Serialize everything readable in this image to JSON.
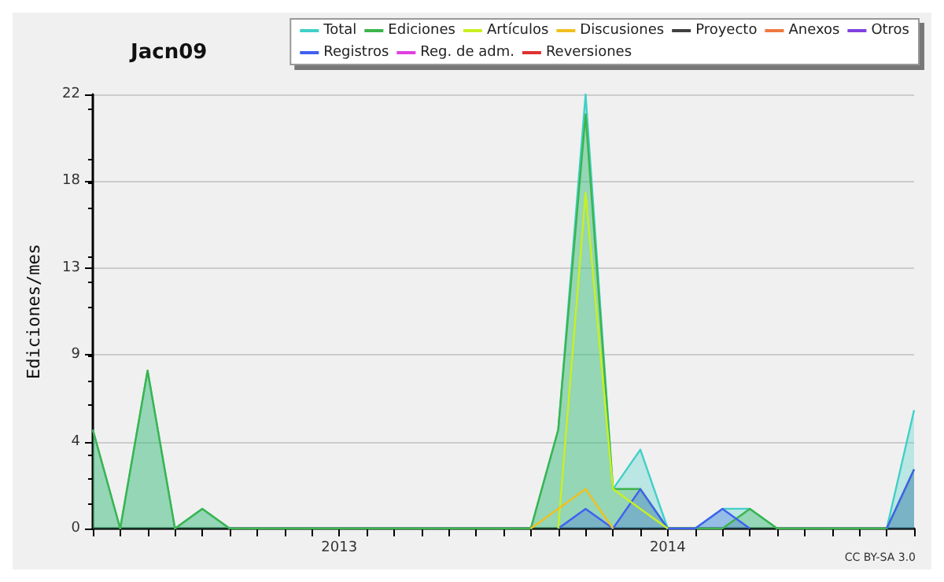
{
  "chart_data": {
    "type": "area",
    "title": "Jacn09",
    "ylabel": "Ediciones/mes",
    "categories": [
      null,
      null,
      null,
      null,
      null,
      null,
      null,
      null,
      null,
      "2013",
      null,
      null,
      null,
      null,
      null,
      null,
      null,
      null,
      null,
      null,
      null,
      "2014",
      null,
      null,
      null,
      null,
      null,
      null,
      null,
      null,
      null
    ],
    "series": [
      {
        "name": "Total",
        "color": "#40d0c8",
        "values": [
          5,
          0,
          8,
          0,
          1,
          0,
          0,
          0,
          0,
          0,
          0,
          0,
          0,
          0,
          0,
          0,
          0,
          5,
          22,
          2,
          4,
          0,
          0,
          1,
          1,
          0,
          0,
          0,
          0,
          0,
          6
        ]
      },
      {
        "name": "Ediciones",
        "color": "#3cb44b",
        "values": [
          5,
          0,
          8,
          0,
          1,
          0,
          0,
          0,
          0,
          0,
          0,
          0,
          0,
          0,
          0,
          0,
          0,
          5,
          21,
          2,
          2,
          0,
          0,
          0,
          1,
          0,
          0,
          0,
          0,
          0,
          3
        ]
      },
      {
        "name": "Artículos",
        "type": "line",
        "color": "#c8f020",
        "values": [
          null,
          null,
          null,
          null,
          null,
          null,
          null,
          null,
          null,
          null,
          null,
          null,
          null,
          null,
          null,
          null,
          null,
          0,
          17,
          2,
          1,
          0,
          null,
          null,
          null,
          null,
          null,
          null,
          null,
          null,
          null
        ]
      },
      {
        "name": "Discusiones",
        "type": "line",
        "color": "#f0c020",
        "values": [
          null,
          null,
          null,
          null,
          null,
          null,
          null,
          null,
          null,
          null,
          null,
          null,
          null,
          null,
          null,
          null,
          0,
          1,
          2,
          0,
          null,
          null,
          null,
          null,
          null,
          null,
          null,
          null,
          null,
          null,
          null
        ]
      },
      {
        "name": "Proyecto",
        "type": "line",
        "color": "#404040",
        "values": [
          null,
          null,
          null,
          null,
          null,
          null,
          null,
          null,
          null,
          null,
          null,
          null,
          null,
          null,
          null,
          null,
          null,
          null,
          null,
          null,
          null,
          null,
          null,
          null,
          null,
          null,
          null,
          null,
          null,
          null,
          null
        ]
      },
      {
        "name": "Anexos",
        "type": "line",
        "color": "#f07840",
        "values": [
          null,
          null,
          null,
          null,
          null,
          null,
          null,
          null,
          null,
          null,
          null,
          null,
          null,
          null,
          null,
          null,
          null,
          null,
          null,
          null,
          null,
          null,
          null,
          null,
          null,
          null,
          null,
          null,
          null,
          null,
          null
        ]
      },
      {
        "name": "Otros",
        "type": "line",
        "color": "#8040e0",
        "values": [
          null,
          null,
          null,
          null,
          null,
          null,
          null,
          null,
          null,
          null,
          null,
          null,
          null,
          null,
          null,
          null,
          null,
          null,
          null,
          null,
          null,
          null,
          null,
          null,
          null,
          null,
          null,
          null,
          null,
          null,
          null
        ]
      },
      {
        "name": "Registros",
        "color": "#4060f0",
        "values": [
          null,
          null,
          null,
          null,
          null,
          null,
          null,
          null,
          null,
          null,
          null,
          null,
          null,
          null,
          null,
          null,
          null,
          0,
          1,
          0,
          2,
          0,
          0,
          1,
          0,
          null,
          null,
          null,
          null,
          0,
          3
        ]
      },
      {
        "name": "Reg. de adm.",
        "type": "line",
        "color": "#e040e0",
        "values": [
          null,
          null,
          null,
          null,
          null,
          null,
          null,
          null,
          null,
          null,
          null,
          null,
          null,
          null,
          null,
          null,
          null,
          null,
          null,
          null,
          null,
          null,
          null,
          null,
          null,
          null,
          null,
          null,
          null,
          null,
          null
        ]
      },
      {
        "name": "Reversiones",
        "type": "line",
        "color": "#e03030",
        "values": [
          null,
          null,
          null,
          null,
          null,
          null,
          null,
          null,
          null,
          null,
          null,
          null,
          null,
          null,
          null,
          null,
          null,
          null,
          null,
          null,
          null,
          null,
          null,
          null,
          null,
          null,
          null,
          null,
          null,
          null,
          null
        ]
      }
    ],
    "ylim": [
      0,
      22
    ],
    "yticks": [
      0,
      {
        "value": 4.4,
        "label": "4"
      },
      {
        "value": 8.8,
        "label": "9"
      },
      {
        "value": 13.2,
        "label": "13"
      },
      {
        "value": 17.6,
        "label": "18"
      },
      22
    ],
    "grid": "y",
    "legend": "top right",
    "marker": "none",
    "annotations": [
      "CC BY-SA 3.0"
    ]
  }
}
